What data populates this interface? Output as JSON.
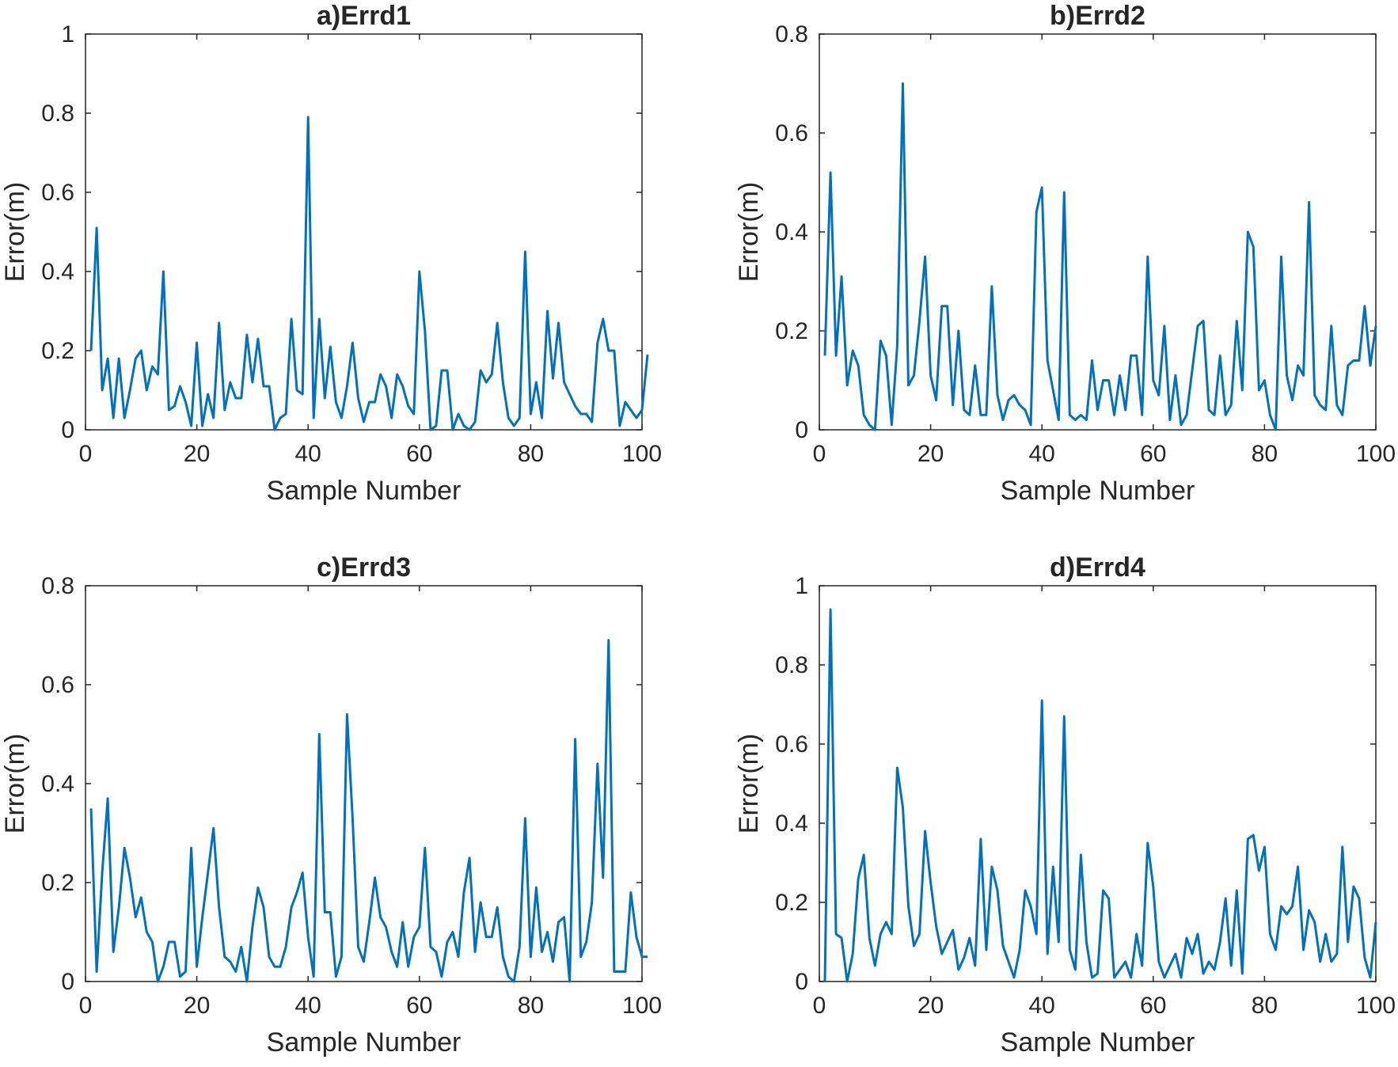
{
  "chart_data": [
    {
      "type": "line",
      "title": "a)Errd1",
      "xlabel": "Sample Number",
      "ylabel": "Error(m)",
      "xlim": [
        0,
        100
      ],
      "ylim": [
        0,
        1
      ],
      "xticks": [
        "0",
        "20",
        "40",
        "60",
        "80",
        "100"
      ],
      "yticks": [
        "0",
        "0.2",
        "0.4",
        "0.6",
        "0.8",
        "1"
      ],
      "color": "#0072BD",
      "x_start": 1,
      "values": [
        0.2,
        0.51,
        0.1,
        0.18,
        0.03,
        0.18,
        0.03,
        0.1,
        0.18,
        0.2,
        0.1,
        0.16,
        0.14,
        0.4,
        0.05,
        0.06,
        0.11,
        0.07,
        0.01,
        0.22,
        0.01,
        0.09,
        0.03,
        0.27,
        0.05,
        0.12,
        0.08,
        0.08,
        0.24,
        0.12,
        0.23,
        0.11,
        0.11,
        0.0,
        0.03,
        0.04,
        0.28,
        0.1,
        0.09,
        0.79,
        0.03,
        0.28,
        0.08,
        0.21,
        0.07,
        0.03,
        0.11,
        0.22,
        0.08,
        0.02,
        0.07,
        0.07,
        0.14,
        0.11,
        0.03,
        0.14,
        0.11,
        0.06,
        0.04,
        0.4,
        0.25,
        0.0,
        0.01,
        0.15,
        0.15,
        0.0,
        0.04,
        0.01,
        0.0,
        0.02,
        0.15,
        0.12,
        0.14,
        0.27,
        0.12,
        0.03,
        0.01,
        0.03,
        0.45,
        0.04,
        0.12,
        0.03,
        0.3,
        0.13,
        0.27,
        0.12,
        0.09,
        0.06,
        0.04,
        0.04,
        0.02,
        0.22,
        0.28,
        0.2,
        0.2,
        0.01,
        0.07,
        0.05,
        0.03,
        0.05,
        0.19
      ]
    },
    {
      "type": "line",
      "title": "b)Errd2",
      "xlabel": "Sample Number",
      "ylabel": "Error(m)",
      "xlim": [
        0,
        100
      ],
      "ylim": [
        0,
        0.8
      ],
      "xticks": [
        "0",
        "20",
        "40",
        "60",
        "80",
        "100"
      ],
      "yticks": [
        "0",
        "0.2",
        "0.4",
        "0.6",
        "0.8"
      ],
      "color": "#0072BD",
      "x_start": 1,
      "values": [
        0.15,
        0.52,
        0.15,
        0.31,
        0.09,
        0.16,
        0.13,
        0.03,
        0.01,
        0.0,
        0.18,
        0.15,
        0.01,
        0.17,
        0.7,
        0.09,
        0.11,
        0.22,
        0.35,
        0.11,
        0.06,
        0.25,
        0.25,
        0.05,
        0.2,
        0.04,
        0.03,
        0.13,
        0.03,
        0.03,
        0.29,
        0.07,
        0.02,
        0.06,
        0.07,
        0.05,
        0.04,
        0.01,
        0.44,
        0.49,
        0.14,
        0.08,
        0.02,
        0.48,
        0.03,
        0.02,
        0.03,
        0.02,
        0.14,
        0.04,
        0.1,
        0.1,
        0.03,
        0.11,
        0.04,
        0.15,
        0.15,
        0.03,
        0.35,
        0.1,
        0.07,
        0.21,
        0.02,
        0.11,
        0.01,
        0.03,
        0.12,
        0.21,
        0.22,
        0.04,
        0.03,
        0.15,
        0.03,
        0.05,
        0.22,
        0.08,
        0.4,
        0.37,
        0.08,
        0.1,
        0.03,
        0.0,
        0.35,
        0.11,
        0.06,
        0.13,
        0.11,
        0.46,
        0.07,
        0.05,
        0.04,
        0.21,
        0.05,
        0.03,
        0.13,
        0.14,
        0.14,
        0.25,
        0.13,
        0.21
      ]
    },
    {
      "type": "line",
      "title": "c)Errd3",
      "xlabel": "Sample Number",
      "ylabel": "Error(m)",
      "xlim": [
        0,
        100
      ],
      "ylim": [
        0,
        0.8
      ],
      "xticks": [
        "0",
        "20",
        "40",
        "60",
        "80",
        "100"
      ],
      "yticks": [
        "0",
        "0.2",
        "0.4",
        "0.6",
        "0.8"
      ],
      "color": "#0072BD",
      "x_start": 1,
      "values": [
        0.35,
        0.02,
        0.22,
        0.37,
        0.06,
        0.15,
        0.27,
        0.21,
        0.13,
        0.17,
        0.1,
        0.08,
        0.0,
        0.03,
        0.08,
        0.08,
        0.01,
        0.02,
        0.27,
        0.03,
        0.13,
        0.22,
        0.31,
        0.15,
        0.05,
        0.04,
        0.02,
        0.07,
        0.0,
        0.11,
        0.19,
        0.15,
        0.05,
        0.03,
        0.03,
        0.07,
        0.15,
        0.18,
        0.22,
        0.09,
        0.01,
        0.5,
        0.14,
        0.14,
        0.01,
        0.05,
        0.54,
        0.33,
        0.07,
        0.04,
        0.12,
        0.21,
        0.13,
        0.11,
        0.06,
        0.03,
        0.12,
        0.03,
        0.09,
        0.11,
        0.27,
        0.07,
        0.06,
        0.01,
        0.08,
        0.1,
        0.05,
        0.18,
        0.25,
        0.06,
        0.16,
        0.09,
        0.09,
        0.15,
        0.05,
        0.01,
        0.0,
        0.07,
        0.33,
        0.05,
        0.19,
        0.06,
        0.1,
        0.04,
        0.12,
        0.13,
        0.0,
        0.49,
        0.05,
        0.08,
        0.16,
        0.44,
        0.21,
        0.69,
        0.02,
        0.02,
        0.02,
        0.18,
        0.09,
        0.05,
        0.05
      ]
    },
    {
      "type": "line",
      "title": "d)Errd4",
      "xlabel": "Sample Number",
      "ylabel": "Error(m)",
      "xlim": [
        0,
        100
      ],
      "ylim": [
        0,
        1
      ],
      "xticks": [
        "0",
        "20",
        "40",
        "60",
        "80",
        "100"
      ],
      "yticks": [
        "0",
        "0.2",
        "0.4",
        "0.6",
        "0.8",
        "1"
      ],
      "color": "#0072BD",
      "x_start": 1,
      "values": [
        0.0,
        0.94,
        0.12,
        0.11,
        0.0,
        0.07,
        0.26,
        0.32,
        0.11,
        0.04,
        0.12,
        0.15,
        0.12,
        0.54,
        0.44,
        0.19,
        0.09,
        0.12,
        0.38,
        0.25,
        0.14,
        0.07,
        0.1,
        0.13,
        0.03,
        0.06,
        0.11,
        0.04,
        0.36,
        0.08,
        0.29,
        0.23,
        0.09,
        0.05,
        0.01,
        0.08,
        0.23,
        0.19,
        0.12,
        0.71,
        0.07,
        0.29,
        0.1,
        0.67,
        0.08,
        0.03,
        0.32,
        0.1,
        0.01,
        0.02,
        0.23,
        0.21,
        0.01,
        0.03,
        0.05,
        0.01,
        0.12,
        0.04,
        0.35,
        0.24,
        0.05,
        0.01,
        0.04,
        0.07,
        0.01,
        0.11,
        0.07,
        0.12,
        0.02,
        0.05,
        0.03,
        0.1,
        0.21,
        0.04,
        0.23,
        0.02,
        0.36,
        0.37,
        0.28,
        0.34,
        0.12,
        0.08,
        0.19,
        0.17,
        0.19,
        0.29,
        0.08,
        0.18,
        0.15,
        0.05,
        0.12,
        0.05,
        0.07,
        0.34,
        0.1,
        0.24,
        0.21,
        0.06,
        0.01,
        0.15
      ]
    }
  ]
}
